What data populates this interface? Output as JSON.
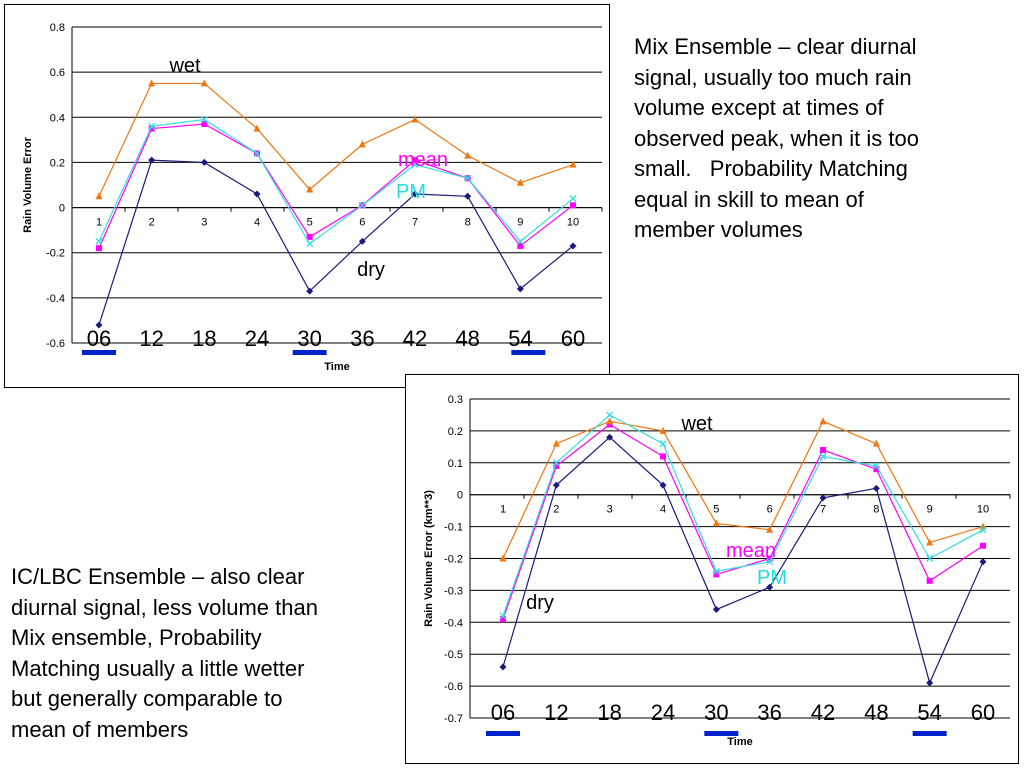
{
  "chart_data": [
    {
      "type": "line",
      "ylabel": "Rain Volume Error",
      "xlabel": "Time",
      "categories": [
        "1",
        "2",
        "3",
        "4",
        "5",
        "6",
        "7",
        "8",
        "9",
        "10"
      ],
      "ylim": [
        -0.6,
        0.8
      ],
      "yticks": [
        "0.8",
        "0.6",
        "0.4",
        "0.2",
        "0",
        "-0.2",
        "-0.4",
        "-0.6"
      ],
      "grid": true,
      "series": [
        {
          "color": "#1a1a7a",
          "marker": "diamond",
          "values": [
            -0.52,
            0.21,
            0.2,
            0.06,
            -0.37,
            -0.15,
            0.06,
            0.05,
            -0.36,
            -0.17
          ]
        },
        {
          "color": "#ff00ff",
          "marker": "square",
          "values": [
            -0.18,
            0.35,
            0.37,
            0.24,
            -0.13,
            0.01,
            0.21,
            0.13,
            -0.17,
            0.01
          ]
        },
        {
          "color": "#ee7711",
          "marker": "triangle",
          "values": [
            0.05,
            0.55,
            0.55,
            0.35,
            0.08,
            0.28,
            0.39,
            0.23,
            0.11,
            0.19
          ]
        },
        {
          "color": "#33dddd",
          "marker": "x",
          "values": [
            -0.15,
            0.36,
            0.39,
            0.24,
            -0.16,
            0.01,
            0.19,
            0.13,
            -0.15,
            0.04
          ]
        }
      ],
      "time_labels": [
        "06",
        "12",
        "18",
        "24",
        "30",
        "36",
        "42",
        "48",
        "54",
        "60"
      ],
      "highlighted_times": [
        "06",
        "30",
        "54"
      ],
      "highlight_color": "#0022cc",
      "annotations": {
        "wet": "wet",
        "mean": "mean",
        "pm": "PM",
        "dry": "dry"
      },
      "annotation_colors": {
        "wet": "#000000",
        "mean": "#ff00ff",
        "pm": "#22dddd",
        "dry": "#000000"
      }
    },
    {
      "type": "line",
      "ylabel": "Rain Volume Error (km**3)",
      "xlabel": "Time",
      "categories": [
        "1",
        "2",
        "3",
        "4",
        "5",
        "6",
        "7",
        "8",
        "9",
        "10"
      ],
      "ylim": [
        -0.7,
        0.3
      ],
      "yticks": [
        "0.3",
        "0.2",
        "0.1",
        "0",
        "-0.1",
        "-0.2",
        "-0.3",
        "-0.4",
        "-0.5",
        "-0.6",
        "-0.7"
      ],
      "grid": true,
      "series": [
        {
          "color": "#1a1a7a",
          "marker": "diamond",
          "values": [
            -0.54,
            0.03,
            0.18,
            0.03,
            -0.36,
            -0.29,
            -0.01,
            0.02,
            -0.59,
            -0.21
          ]
        },
        {
          "color": "#ff00ff",
          "marker": "square",
          "values": [
            -0.39,
            0.09,
            0.22,
            0.12,
            -0.25,
            -0.2,
            0.14,
            0.08,
            -0.27,
            -0.16
          ]
        },
        {
          "color": "#ee7711",
          "marker": "triangle",
          "values": [
            -0.2,
            0.16,
            0.23,
            0.2,
            -0.09,
            -0.11,
            0.23,
            0.16,
            -0.15,
            -0.1
          ]
        },
        {
          "color": "#33dddd",
          "marker": "x",
          "values": [
            -0.38,
            0.1,
            0.25,
            0.16,
            -0.24,
            -0.21,
            0.12,
            0.09,
            -0.2,
            -0.11
          ]
        }
      ],
      "time_labels": [
        "06",
        "12",
        "18",
        "24",
        "30",
        "36",
        "42",
        "48",
        "54",
        "60"
      ],
      "highlighted_times": [
        "06",
        "30",
        "54"
      ],
      "highlight_color": "#0022cc",
      "annotations": {
        "wet": "wet",
        "mean": "mean",
        "pm": "PM",
        "dry": "dry"
      },
      "annotation_colors": {
        "wet": "#000000",
        "mean": "#ff00ff",
        "pm": "#22dddd",
        "dry": "#000000"
      }
    }
  ],
  "captions": {
    "mix": [
      "Mix Ensemble – clear diurnal",
      "signal, usually too much rain",
      "volume except at times of",
      "observed peak, when it is too",
      "small.   Probability Matching",
      "equal in skill to mean of",
      "member volumes"
    ],
    "iclbc": [
      "IC/LBC Ensemble – also clear",
      "diurnal signal, less volume than",
      "Mix ensemble, Probability",
      "Matching usually a little wetter",
      "but generally comparable to",
      "mean of members"
    ]
  }
}
